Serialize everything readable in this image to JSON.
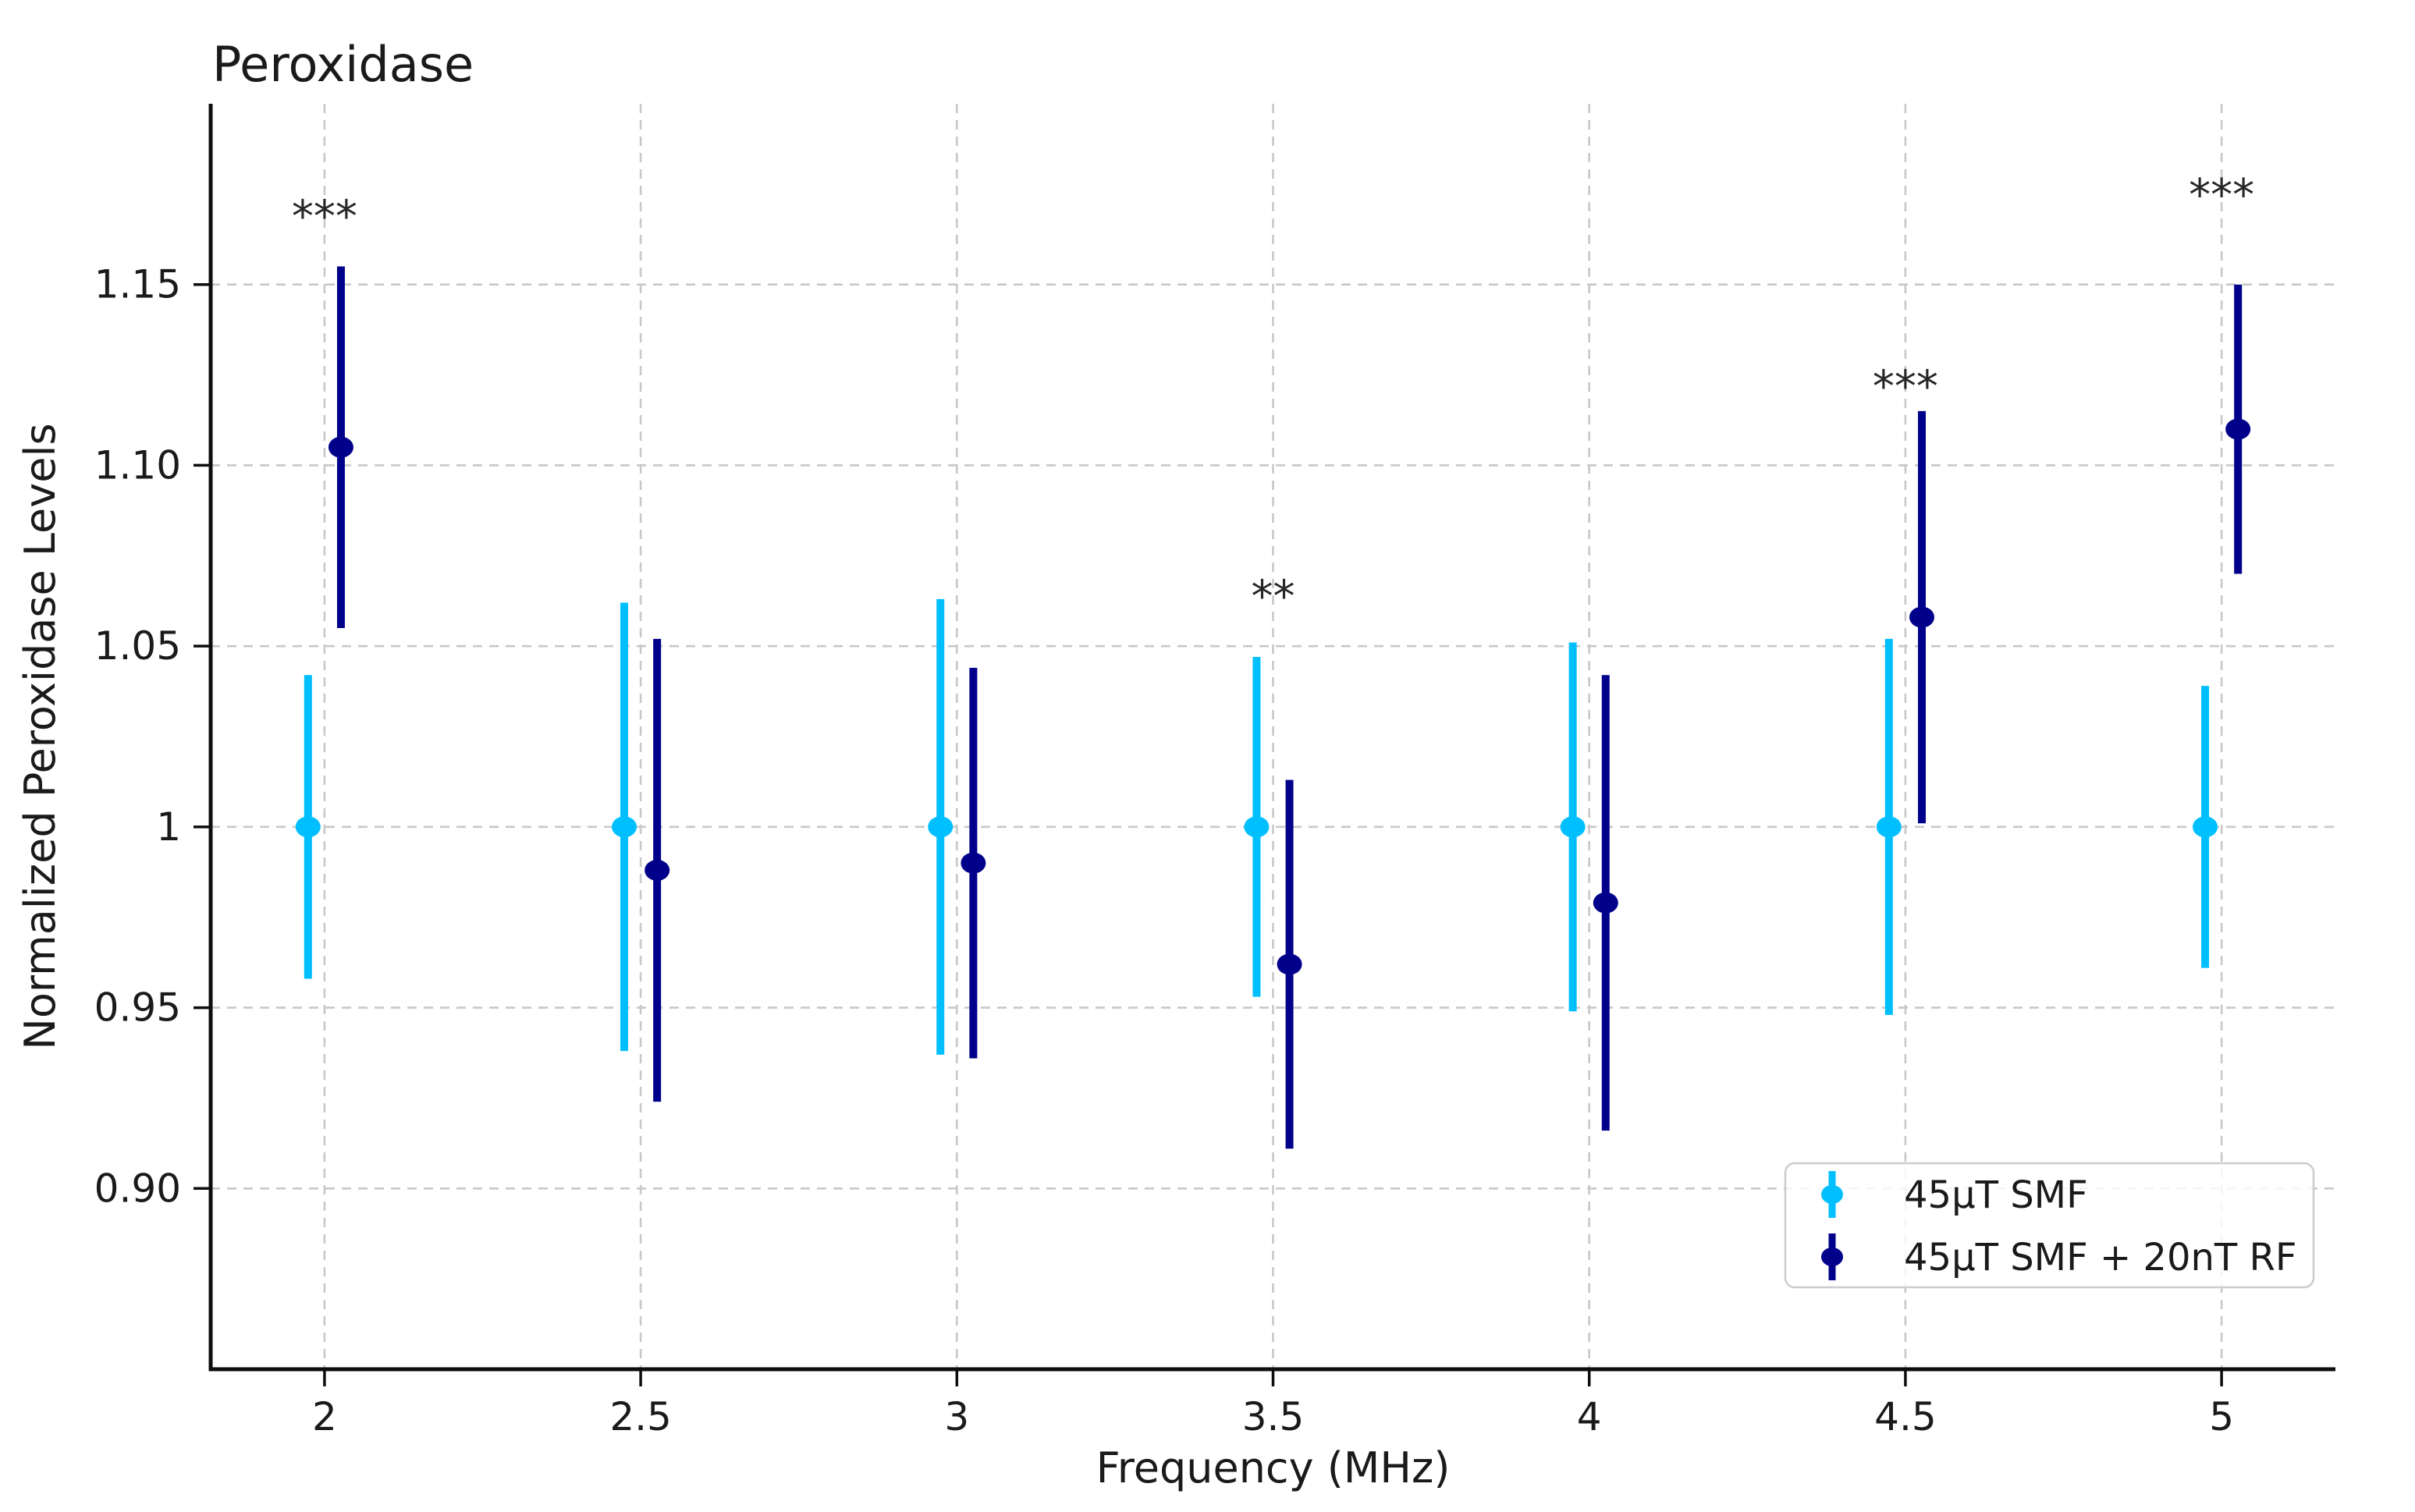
{
  "chart_data": {
    "type": "scatter",
    "subtype": "errorbar",
    "title": "Peroxidase",
    "xlabel": "Frequency (MHz)",
    "ylabel": "Normalized Peroxidase Levels",
    "x": [
      2,
      2.5,
      3,
      3.5,
      4,
      4.5,
      5
    ],
    "xtick_labels": [
      "2",
      "2.5",
      "3",
      "3.5",
      "4",
      "4.5",
      "5"
    ],
    "ytick_values": [
      0.9,
      0.95,
      1.0,
      1.05,
      1.1,
      1.15
    ],
    "ytick_labels": [
      "0.90",
      "0.95",
      "1",
      "1.05",
      "1.10",
      "1.15"
    ],
    "xlim": [
      1.82,
      5.18
    ],
    "ylim": [
      0.85,
      1.2
    ],
    "grid": true,
    "grid_style": "dashed",
    "legend_position": "lower right",
    "series": [
      {
        "name": "45µT SMF",
        "color": "#00BFFF",
        "marker": "circle",
        "x_offset": -0.026,
        "y": [
          1.0,
          1.0,
          1.0,
          1.0,
          1.0,
          1.0,
          1.0
        ],
        "yerr": [
          0.042,
          0.062,
          0.063,
          0.047,
          0.051,
          0.052,
          0.039
        ]
      },
      {
        "name": "45µT SMF + 20nT RF",
        "color": "#00008B",
        "marker": "circle",
        "x_offset": 0.026,
        "y": [
          1.105,
          0.988,
          0.99,
          0.962,
          0.979,
          1.058,
          1.11
        ],
        "yerr": [
          0.05,
          0.064,
          0.054,
          0.051,
          0.063,
          0.057,
          0.04
        ]
      }
    ],
    "annotations": [
      {
        "x": 2.0,
        "y": 1.169,
        "label": "***"
      },
      {
        "x": 3.5,
        "y": 1.064,
        "label": "**"
      },
      {
        "x": 4.5,
        "y": 1.122,
        "label": "***"
      },
      {
        "x": 5.0,
        "y": 1.175,
        "label": "***"
      }
    ],
    "colors": {
      "background": "#ffffff",
      "grid": "#c8c8c8",
      "spine": "#0d0d0d",
      "text": "#1a1a1a",
      "annotation": "#262626",
      "legend_border": "#cccccc",
      "legend_fill_rgba": "255,255,255,0.82"
    }
  }
}
